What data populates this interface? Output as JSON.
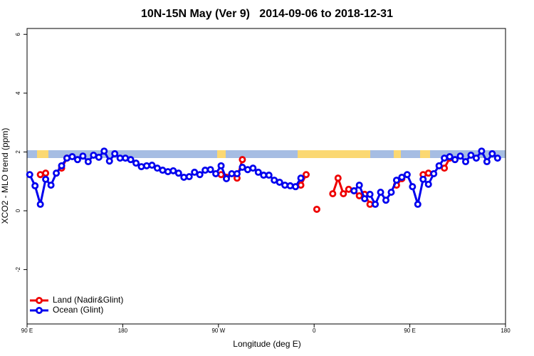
{
  "chart_data": {
    "type": "line",
    "title": "10N-15N May (Ver 9)   2014-09-06 to 2018-12-31",
    "x_label": "Longitude (deg E)",
    "y_label": "XCO2 - MLO trend (ppm)",
    "xlim": [
      90,
      540
    ],
    "ylim": [
      -3.85,
      6.2
    ],
    "xticks": [
      {
        "value": 90,
        "label": "90 E"
      },
      {
        "value": 180,
        "label": "180"
      },
      {
        "value": 270,
        "label": "90 W"
      },
      {
        "value": 360,
        "label": "0"
      },
      {
        "value": 450,
        "label": "90 E"
      },
      {
        "value": 540,
        "label": "180"
      }
    ],
    "yticks": [
      -2,
      0,
      2,
      4,
      6
    ],
    "legend": "bottom-left",
    "series": [
      {
        "name": "Land (Nadir&Glint)",
        "color": "#ee0000",
        "x": [
          102.5,
          107.5,
          112.5,
          122.5,
          127.5,
          132.5,
          272.5,
          277.5,
          282.5,
          287.5,
          292.5,
          297.5,
          347.5,
          352.5,
          357.5,
          362.5,
          367.5,
          377.5,
          382.5,
          387.5,
          392.5,
          397.5,
          402.5,
          407.5,
          412.5,
          417.5,
          437.5,
          442.5,
          447.5,
          462.5,
          467.5,
          472.5,
          482.5,
          487.5
        ],
        "values": [
          1.23,
          1.28,
          null,
          1.45,
          1.79,
          null,
          1.23,
          1.14,
          null,
          1.11,
          1.74,
          null,
          0.87,
          1.23,
          null,
          0.05,
          null,
          0.58,
          1.11,
          0.58,
          0.73,
          0.68,
          0.51,
          0.56,
          0.22,
          null,
          0.87,
          1.09,
          null,
          1.23,
          1.28,
          null,
          1.45,
          1.79
        ]
      },
      {
        "name": "Ocean (Glint)",
        "color": "#0000ee",
        "x": [
          92.5,
          97.5,
          102.5,
          107.5,
          112.5,
          117.5,
          122.5,
          127.5,
          132.5,
          137.5,
          142.5,
          147.5,
          152.5,
          157.5,
          162.5,
          167.5,
          172.5,
          177.5,
          182.5,
          187.5,
          192.5,
          197.5,
          202.5,
          207.5,
          212.5,
          217.5,
          222.5,
          227.5,
          232.5,
          237.5,
          242.5,
          247.5,
          252.5,
          257.5,
          262.5,
          267.5,
          272.5,
          277.5,
          282.5,
          287.5,
          292.5,
          297.5,
          302.5,
          307.5,
          312.5,
          317.5,
          322.5,
          327.5,
          332.5,
          337.5,
          342.5,
          347.5,
          352.5,
          397.5,
          402.5,
          407.5,
          412.5,
          417.5,
          422.5,
          427.5,
          432.5,
          437.5,
          442.5,
          447.5,
          452.5,
          457.5,
          462.5,
          467.5,
          472.5,
          477.5,
          482.5,
          487.5,
          492.5,
          497.5,
          502.5,
          507.5,
          512.5,
          517.5,
          522.5,
          527.5,
          532.5
        ],
        "values": [
          1.23,
          0.85,
          0.22,
          1.07,
          0.87,
          1.28,
          1.53,
          1.79,
          1.84,
          1.74,
          1.86,
          1.67,
          1.89,
          1.82,
          2.03,
          1.69,
          1.94,
          1.79,
          1.79,
          1.74,
          1.62,
          1.5,
          1.53,
          1.55,
          1.45,
          1.38,
          1.33,
          1.36,
          1.28,
          1.14,
          1.16,
          1.31,
          1.23,
          1.38,
          1.4,
          1.26,
          1.53,
          1.09,
          1.26,
          1.26,
          1.48,
          1.4,
          1.45,
          1.31,
          1.21,
          1.21,
          1.04,
          0.97,
          0.87,
          0.85,
          0.82,
          1.11,
          null,
          0.68,
          0.87,
          0.41,
          0.56,
          0.22,
          0.63,
          0.36,
          0.63,
          1.04,
          1.14,
          1.23,
          0.82,
          0.22,
          1.07,
          0.9,
          1.26,
          1.53,
          1.79,
          1.84,
          1.74,
          1.86,
          1.67,
          1.89,
          1.79,
          2.03,
          1.67,
          1.94,
          1.79
        ]
      }
    ]
  }
}
